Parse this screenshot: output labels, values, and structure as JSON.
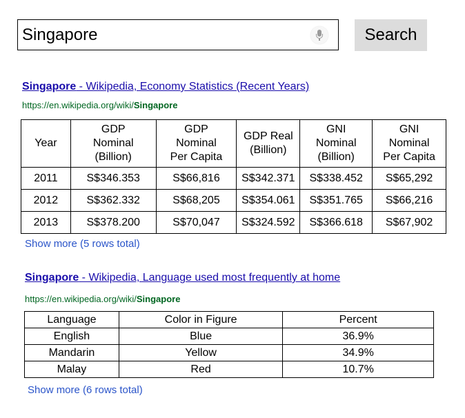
{
  "search": {
    "query": "Singapore",
    "button_label": "Search"
  },
  "result1": {
    "title_bold": "Singapore",
    "title_rest": " - Wikipedia, Economy Statistics (Recent Years)",
    "url_prefix": "https://en.wikipedia.org/wiki/",
    "url_bold": "Singapore",
    "table": {
      "headers": [
        [
          "Year"
        ],
        [
          "GDP",
          "Nominal",
          "(Billion)"
        ],
        [
          "GDP",
          "Nominal",
          "Per Capita"
        ],
        [
          "GDP Real",
          "(Billion)"
        ],
        [
          "GNI",
          "Nominal",
          "(Billion)"
        ],
        [
          "GNI",
          "Nominal",
          "Per Capita"
        ]
      ],
      "rows": [
        [
          "2011",
          "S$346.353",
          "S$66,816",
          "S$342.371",
          "S$338.452",
          "S$65,292"
        ],
        [
          "2012",
          "S$362.332",
          "S$68,205",
          "S$354.061",
          "S$351.765",
          "S$66,216"
        ],
        [
          "2013",
          "S$378.200",
          "S$70,047",
          "S$324.592",
          "S$366.618",
          "S$67,902"
        ]
      ]
    },
    "more_label": "Show more (5 rows total)"
  },
  "result2": {
    "title_bold": "Singapore",
    "title_rest": " - Wikipedia, Language used most frequently at home",
    "url_prefix": "https://en.wikipedia.org/wiki/",
    "url_bold": "Singapore",
    "table": {
      "headers": [
        "Language",
        "Color in Figure",
        "Percent"
      ],
      "rows": [
        [
          "English",
          "Blue",
          "36.9%"
        ],
        [
          "Mandarin",
          "Yellow",
          "34.9%"
        ],
        [
          "Malay",
          "Red",
          "10.7%"
        ]
      ]
    },
    "more_label": "Show more (6 rows total)"
  }
}
